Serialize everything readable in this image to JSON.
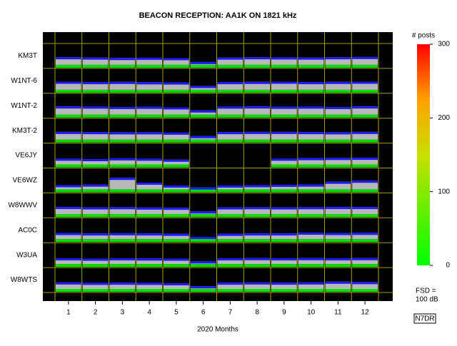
{
  "chart_data": {
    "type": "strip",
    "title": "BEACON RECEPTION: AA1K ON 1821 kHz",
    "xlabel": "2020 Months",
    "categories": [
      "1",
      "2",
      "3",
      "4",
      "5",
      "6",
      "7",
      "8",
      "9",
      "10",
      "11",
      "12"
    ],
    "ylim": [
      0,
      100
    ],
    "fsd_label": [
      "FSD =",
      "100 dB"
    ],
    "credit": "N7DR",
    "colorbar": {
      "title": "# posts",
      "clim": [
        0,
        300
      ],
      "ticks": [
        0,
        100,
        200,
        300
      ]
    },
    "series": [
      {
        "name": "KM3T",
        "values": [
          40,
          38,
          36,
          37,
          35,
          15,
          38,
          40,
          39,
          38,
          40,
          41
        ]
      },
      {
        "name": "W1NT-6",
        "values": [
          42,
          40,
          41,
          39,
          38,
          20,
          40,
          41,
          42,
          40,
          41,
          42
        ]
      },
      {
        "name": "W1NT-2",
        "values": [
          43,
          42,
          40,
          41,
          38,
          22,
          42,
          43,
          41,
          42,
          40,
          43
        ]
      },
      {
        "name": "KM3T-2",
        "values": [
          40,
          39,
          38,
          38,
          36,
          18,
          39,
          40,
          40,
          39,
          38,
          40
        ]
      },
      {
        "name": "VE6JY",
        "values": [
          30,
          28,
          32,
          30,
          25,
          null,
          null,
          null,
          30,
          33,
          34,
          35
        ]
      },
      {
        "name": "VE6WZ",
        "values": [
          22,
          25,
          60,
          35,
          20,
          10,
          20,
          22,
          24,
          25,
          40,
          45
        ]
      },
      {
        "name": "W8WWV",
        "values": [
          38,
          36,
          37,
          35,
          34,
          15,
          36,
          37,
          36,
          37,
          38,
          38
        ]
      },
      {
        "name": "AC0C",
        "values": [
          32,
          30,
          31,
          30,
          28,
          12,
          28,
          30,
          30,
          34,
          32,
          33
        ]
      },
      {
        "name": "W3UA",
        "values": [
          30,
          28,
          30,
          29,
          28,
          14,
          30,
          31,
          30,
          31,
          30,
          31
        ]
      },
      {
        "name": "W8WTS",
        "values": [
          34,
          32,
          33,
          32,
          30,
          14,
          33,
          34,
          33,
          34,
          38,
          36
        ]
      }
    ]
  }
}
